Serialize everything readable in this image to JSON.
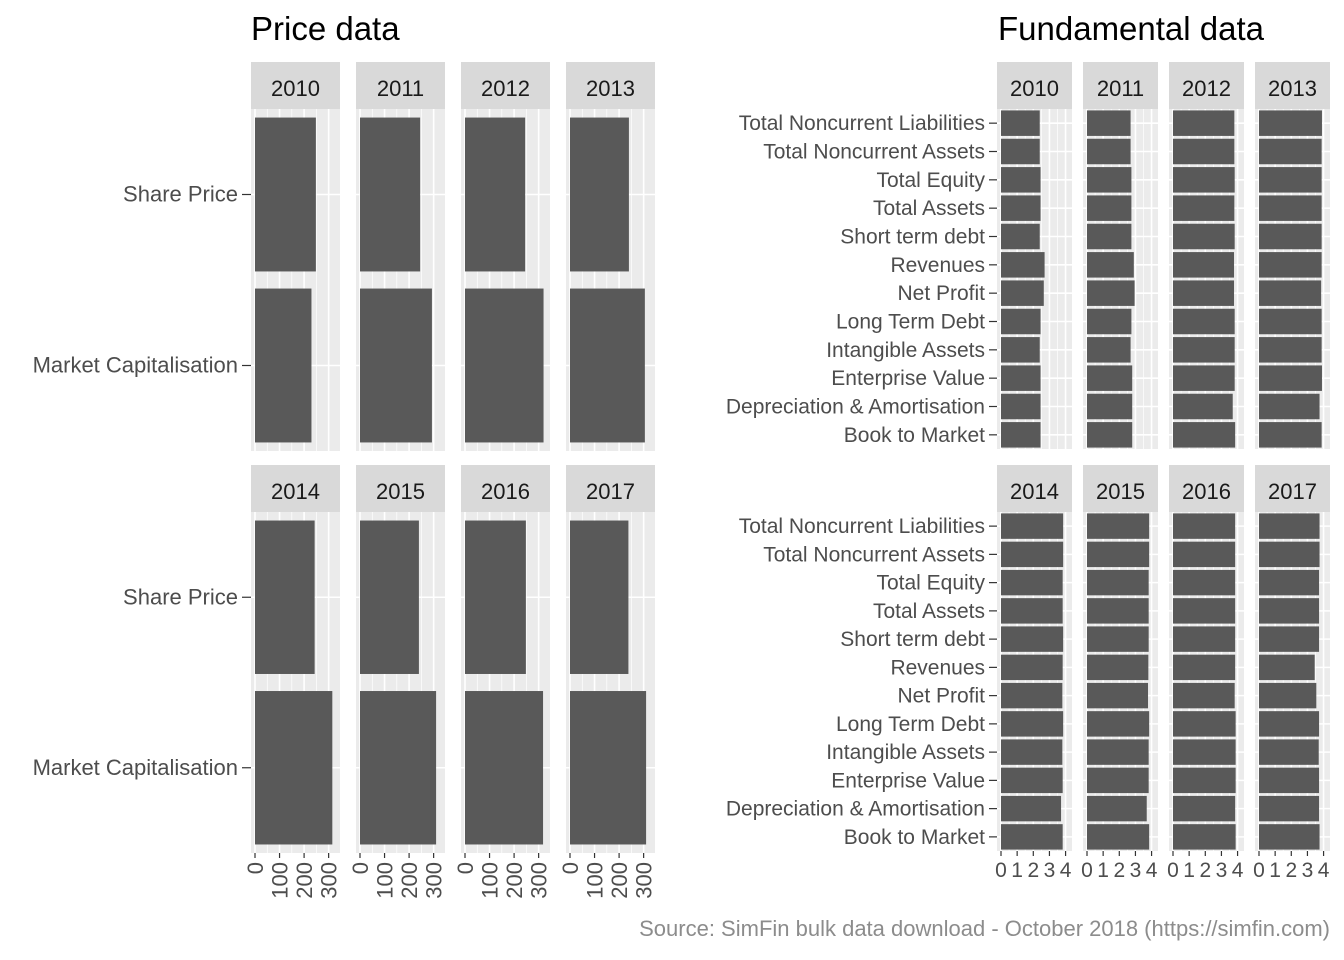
{
  "titles": {
    "left": "Price data",
    "right": "Fundamental data"
  },
  "source": "Source: SimFin bulk data download - October 2018 (https://simfin.com)",
  "colors": {
    "bar": "#595959",
    "panel_bg": "#ebebeb",
    "strip_bg": "#d9d9d9",
    "grid": "#ffffff",
    "axis_text": "#4d4d4d",
    "source_text": "#8c8c8c"
  },
  "chart_data": [
    {
      "type": "bar",
      "orientation": "horizontal",
      "title": "Price data",
      "facet_by": "year",
      "facets": [
        "2010",
        "2011",
        "2012",
        "2013",
        "2014",
        "2015",
        "2016",
        "2017"
      ],
      "categories": [
        "Share Price",
        "Market Capitalisation"
      ],
      "xlim": [
        0,
        330
      ],
      "xticks": [
        "0",
        "100",
        "200",
        "300"
      ],
      "values": {
        "2010": [
          248,
          230
        ],
        "2011": [
          245,
          293
        ],
        "2012": [
          245,
          320
        ],
        "2013": [
          240,
          305
        ],
        "2014": [
          243,
          315
        ],
        "2015": [
          240,
          310
        ],
        "2016": [
          248,
          318
        ],
        "2017": [
          238,
          310
        ]
      }
    },
    {
      "type": "bar",
      "orientation": "horizontal",
      "title": "Fundamental data",
      "facet_by": "year",
      "facets": [
        "2010",
        "2011",
        "2012",
        "2013",
        "2014",
        "2015",
        "2016",
        "2017"
      ],
      "categories": [
        "Total Noncurrent Liabilities",
        "Total Noncurrent Assets",
        "Total Equity",
        "Total Assets",
        "Short term debt",
        "Revenues",
        "Net Profit",
        "Long Term Debt",
        "Intangible Assets",
        "Enterprise Value",
        "Depreciation & Amortisation",
        "Book to Market"
      ],
      "xlim": [
        0,
        4.15
      ],
      "xticks": [
        "0",
        "1",
        "2",
        "3",
        "4"
      ],
      "values": {
        "2010": [
          2.4,
          2.4,
          2.45,
          2.45,
          2.4,
          2.7,
          2.65,
          2.45,
          2.4,
          2.45,
          2.45,
          2.45
        ],
        "2011": [
          2.7,
          2.7,
          2.75,
          2.75,
          2.75,
          2.9,
          2.95,
          2.75,
          2.7,
          2.8,
          2.8,
          2.8
        ],
        "2012": [
          3.8,
          3.8,
          3.82,
          3.8,
          3.82,
          3.78,
          3.78,
          3.82,
          3.82,
          3.82,
          3.7,
          3.85
        ],
        "2013": [
          3.9,
          3.88,
          3.88,
          3.88,
          3.88,
          3.88,
          3.85,
          3.88,
          3.88,
          3.9,
          3.75,
          3.88
        ],
        "2014": [
          3.85,
          3.85,
          3.82,
          3.82,
          3.85,
          3.82,
          3.8,
          3.85,
          3.8,
          3.82,
          3.72,
          3.82
        ],
        "2015": [
          3.85,
          3.85,
          3.82,
          3.82,
          3.82,
          3.8,
          3.78,
          3.85,
          3.82,
          3.82,
          3.7,
          3.85
        ],
        "2016": [
          3.85,
          3.85,
          3.85,
          3.85,
          3.85,
          3.85,
          3.82,
          3.88,
          3.88,
          3.88,
          3.85,
          3.88
        ],
        "2017": [
          3.75,
          3.75,
          3.72,
          3.72,
          3.72,
          3.45,
          3.55,
          3.72,
          3.7,
          3.72,
          3.72,
          3.75
        ]
      }
    }
  ]
}
